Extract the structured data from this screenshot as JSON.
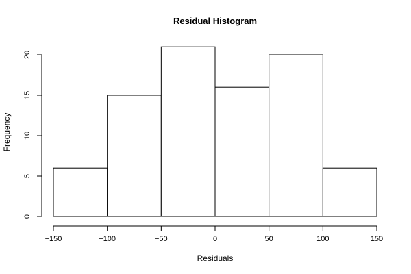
{
  "chart_data": {
    "type": "bar",
    "title": "Residual Histogram",
    "xlabel": "Residuals",
    "ylabel": "Frequency",
    "bins": [
      {
        "from": -150,
        "to": -100,
        "count": 6
      },
      {
        "from": -100,
        "to": -50,
        "count": 15
      },
      {
        "from": -50,
        "to": 0,
        "count": 21
      },
      {
        "from": 0,
        "to": 50,
        "count": 16
      },
      {
        "from": 50,
        "to": 100,
        "count": 20
      },
      {
        "from": 100,
        "to": 150,
        "count": 6
      }
    ],
    "xlim": [
      -150,
      150
    ],
    "ylim": [
      0,
      21
    ],
    "xticks": [
      "-150",
      "-100",
      "-50",
      "0",
      "50",
      "100",
      "150"
    ],
    "yticks": [
      "0",
      "5",
      "10",
      "15",
      "20"
    ],
    "grid": false,
    "colors": {
      "bar_fill": "#ffffff",
      "bar_stroke": "#000000"
    }
  }
}
